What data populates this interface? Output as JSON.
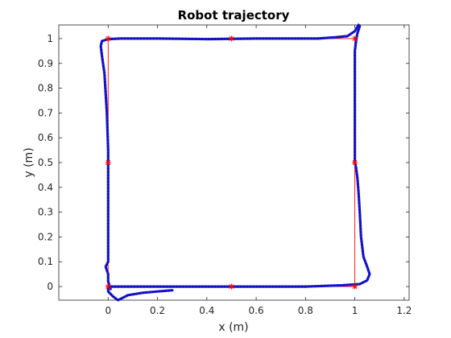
{
  "chart_data": {
    "type": "line",
    "title": "Robot trajectory",
    "xlabel": "x (m)",
    "ylabel": "y (m)",
    "xlim": [
      -0.2,
      1.22
    ],
    "ylim": [
      -0.055,
      1.055
    ],
    "xticks": [
      0,
      0.2,
      0.4,
      0.6,
      0.8,
      1,
      1.2
    ],
    "xtick_labels": [
      "0",
      "0.2",
      "0.4",
      "0.6",
      "0.8",
      "1",
      "1.2"
    ],
    "yticks": [
      0,
      0.1,
      0.2,
      0.3,
      0.4,
      0.5,
      0.6,
      0.7,
      0.8,
      0.9,
      1
    ],
    "ytick_labels": [
      "0",
      "0.1",
      "0.2",
      "0.3",
      "0.4",
      "0.5",
      "0.6",
      "0.7",
      "0.8",
      "0.9",
      "1"
    ],
    "grid": false,
    "box": true,
    "series": [
      {
        "role": "reference-path",
        "color": "#ff0000",
        "style": "solid",
        "marker": "asterisk",
        "x": [
          0,
          0.5,
          1,
          1,
          1,
          1,
          1,
          0.5,
          0,
          0,
          0,
          0
        ],
        "y": [
          0,
          0,
          0,
          0.5,
          1,
          1,
          1,
          1,
          1,
          0.5,
          0,
          0
        ]
      },
      {
        "role": "robot-trajectory",
        "color": "#1f1fcf",
        "style": "dotted-thick",
        "x": [
          0.26,
          0.2,
          0.14,
          0.08,
          0.04,
          0.02,
          0.0,
          0.0,
          0.05,
          0.2,
          0.4,
          0.6,
          0.8,
          0.95,
          1.02,
          1.05,
          1.06,
          1.05,
          1.035,
          1.025,
          1.02,
          1.015,
          1.01,
          1.005,
          1.0,
          1.0,
          1.0,
          1.0,
          1.005,
          1.01,
          1.02,
          1.015,
          1.0,
          0.97,
          0.92,
          0.85,
          0.78,
          0.75,
          0.6,
          0.4,
          0.2,
          0.05,
          0.0,
          -0.025,
          -0.03,
          -0.025,
          -0.015,
          -0.005,
          0.0,
          0.0,
          0.0,
          0.0,
          0.0,
          -0.01,
          0.0,
          0.0,
          0.01
        ],
        "y": [
          -0.015,
          -0.02,
          -0.025,
          -0.035,
          -0.055,
          -0.04,
          -0.02,
          0.0,
          0.0,
          0.0,
          0.0,
          0.0,
          0.0,
          0.005,
          0.01,
          0.025,
          0.05,
          0.08,
          0.12,
          0.2,
          0.3,
          0.38,
          0.44,
          0.48,
          0.5,
          0.6,
          0.8,
          0.95,
          0.99,
          1.02,
          1.05,
          1.055,
          1.03,
          1.01,
          1.005,
          1.0,
          1.0,
          1.0,
          1.0,
          0.998,
          1.0,
          1.0,
          0.998,
          0.99,
          0.97,
          0.93,
          0.86,
          0.7,
          0.55,
          0.5,
          0.4,
          0.2,
          0.1,
          0.08,
          0.05,
          0.02,
          -0.01
        ]
      }
    ]
  }
}
